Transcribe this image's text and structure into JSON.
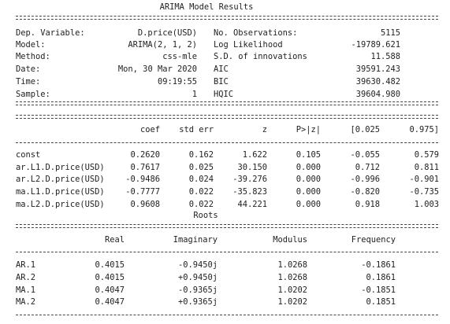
{
  "title": "ARIMA Model Results",
  "info": {
    "rows": [
      [
        "Dep. Variable:",
        "D.price(USD)",
        "No. Observations:",
        "5115"
      ],
      [
        "Model:",
        "ARIMA(2, 1, 2)",
        "Log Likelihood",
        "-19789.621"
      ],
      [
        "Method:",
        "css-mle",
        "S.D. of innovations",
        "11.588"
      ],
      [
        "Date:",
        "Mon, 30 Mar 2020",
        "AIC",
        "39591.243"
      ],
      [
        "Time:",
        "09:19:55",
        "BIC",
        "39630.482"
      ],
      [
        "Sample:",
        "1",
        "HQIC",
        "39604.980"
      ]
    ]
  },
  "coef_table": {
    "header": [
      "coef",
      "std err",
      "z",
      "P>|z|",
      "[0.025",
      "0.975]"
    ],
    "rows": [
      [
        "const",
        "0.2620",
        "0.162",
        "1.622",
        "0.105",
        "-0.055",
        "0.579"
      ],
      [
        "ar.L1.D.price(USD)",
        "0.7617",
        "0.025",
        "30.150",
        "0.000",
        "0.712",
        "0.811"
      ],
      [
        "ar.L2.D.price(USD)",
        "-0.9486",
        "0.024",
        "-39.276",
        "0.000",
        "-0.996",
        "-0.901"
      ],
      [
        "ma.L1.D.price(USD)",
        "-0.7777",
        "0.022",
        "-35.823",
        "0.000",
        "-0.820",
        "-0.735"
      ],
      [
        "ma.L2.D.price(USD)",
        "0.9608",
        "0.022",
        "44.221",
        "0.000",
        "0.918",
        "1.003"
      ]
    ]
  },
  "roots_table": {
    "title": "Roots",
    "header": [
      "Real",
      "Imaginary",
      "Modulus",
      "Frequency"
    ],
    "rows": [
      [
        "AR.1",
        "0.4015",
        "-0.9450j",
        "1.0268",
        "-0.1861"
      ],
      [
        "AR.2",
        "0.4015",
        "+0.9450j",
        "1.0268",
        "0.1861"
      ],
      [
        "MA.1",
        "0.4047",
        "-0.9365j",
        "1.0202",
        "-0.1851"
      ],
      [
        "MA.2",
        "0.4047",
        "+0.9365j",
        "1.0202",
        "0.1851"
      ]
    ]
  }
}
